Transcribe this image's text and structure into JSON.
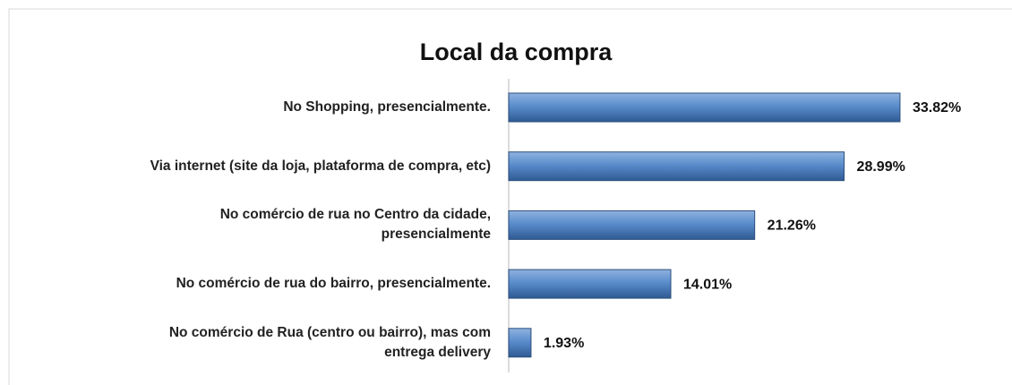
{
  "chart_data": {
    "type": "bar",
    "orientation": "horizontal",
    "title": "Local da compra",
    "categories": [
      "No Shopping, presencialmente.",
      "Via internet (site da loja, plataforma de compra, etc)",
      "No comércio de rua no Centro da cidade,\npresencialmente",
      "No comércio de rua do bairro, presencialmente.",
      "No comércio de Rua (centro ou bairro), mas com\nentrega delivery"
    ],
    "values": [
      33.82,
      28.99,
      21.26,
      14.01,
      1.93
    ],
    "value_labels": [
      "33.82%",
      "28.99%",
      "21.26%",
      "14.01%",
      "1.93%"
    ],
    "color": "#4f81bd"
  }
}
